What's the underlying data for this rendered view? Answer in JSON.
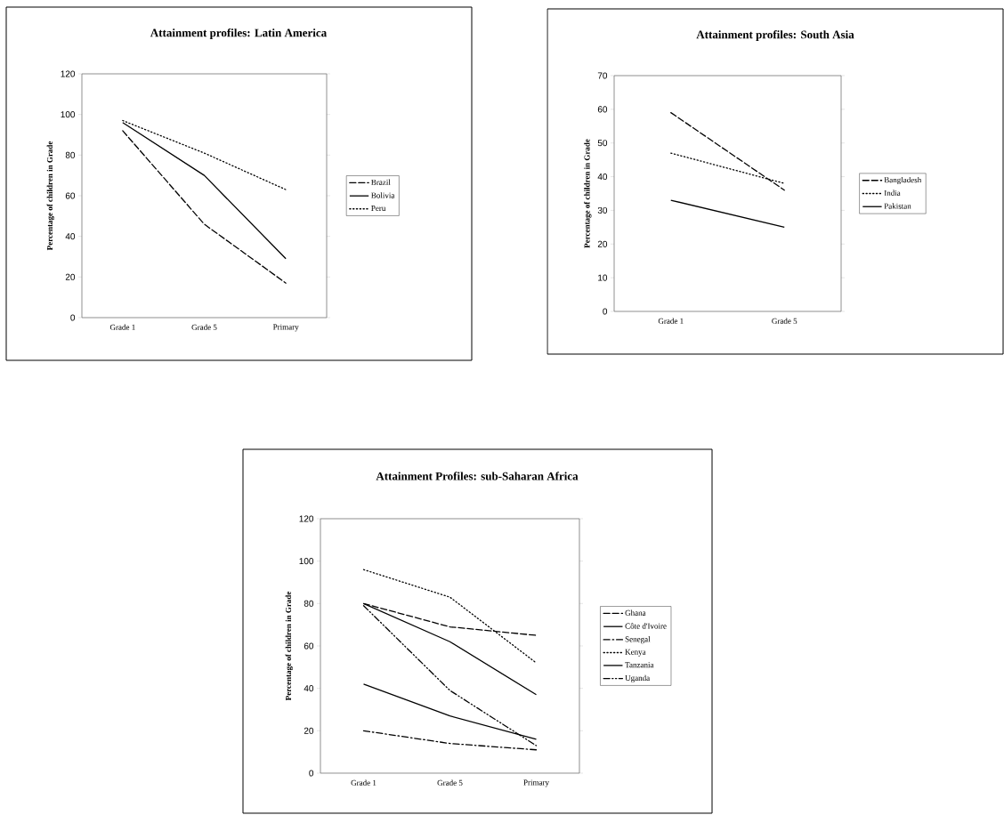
{
  "chart_data": [
    {
      "type": "line",
      "title": "Attainment profiles: Latin America",
      "ylabel": "Percentage of children in Grade",
      "categories": [
        "Grade 1",
        "Grade 5",
        "Primary"
      ],
      "ylim": [
        0,
        120
      ],
      "yticks": [
        0,
        20,
        40,
        60,
        80,
        100,
        120
      ],
      "legend": "right",
      "grid": false,
      "series": [
        {
          "name": "Brazil",
          "color": "#000000",
          "line_style": "dashed",
          "values": [
            92,
            46,
            17
          ]
        },
        {
          "name": "Bolivia",
          "color": "#000000",
          "line_style": "solid",
          "values": [
            96,
            70,
            29
          ]
        },
        {
          "name": "Peru",
          "color": "#000000",
          "line_style": "dotted",
          "values": [
            97,
            81,
            63
          ]
        }
      ]
    },
    {
      "type": "line",
      "title": "Attainment profiles: South Asia",
      "ylabel": "Percentage of children in Grade",
      "categories": [
        "Grade 1",
        "Grade 5"
      ],
      "ylim": [
        0,
        70
      ],
      "yticks": [
        0,
        10,
        20,
        30,
        40,
        50,
        60,
        70
      ],
      "legend": "right",
      "grid": false,
      "series": [
        {
          "name": "Bangladesh",
          "color": "#000000",
          "line_style": "dashed",
          "values": [
            59,
            36
          ]
        },
        {
          "name": "India",
          "color": "#000000",
          "line_style": "dotted",
          "values": [
            47,
            38
          ]
        },
        {
          "name": "Pakistan",
          "color": "#000000",
          "line_style": "solid",
          "values": [
            33,
            25
          ]
        }
      ]
    },
    {
      "type": "line",
      "title": "Attainment Profiles: sub-Saharan Africa",
      "ylabel": "Percentage of children in Grade",
      "categories": [
        "Grade 1",
        "Grade 5",
        "Primary"
      ],
      "ylim": [
        0,
        120
      ],
      "yticks": [
        0,
        20,
        40,
        60,
        80,
        100,
        120
      ],
      "legend": "right",
      "grid": false,
      "series": [
        {
          "name": "Ghana",
          "color": "#000000",
          "line_style": "dashed",
          "values": [
            80,
            69,
            65
          ]
        },
        {
          "name": "Côte d'Ivoire",
          "color": "#000000",
          "line_style": "solid",
          "values": [
            42,
            27,
            16
          ]
        },
        {
          "name": "Senegal",
          "color": "#000000",
          "line_style": "dashdot",
          "values": [
            20,
            14,
            11
          ]
        },
        {
          "name": "Kenya",
          "color": "#000000",
          "line_style": "dotted",
          "values": [
            96,
            83,
            52
          ]
        },
        {
          "name": "Tanzania",
          "color": "#000000",
          "line_style": "solid",
          "values": [
            80,
            62,
            37
          ]
        },
        {
          "name": "Uganda",
          "color": "#000000",
          "line_style": "dashdotdot",
          "values": [
            79,
            39,
            13
          ]
        }
      ]
    }
  ]
}
